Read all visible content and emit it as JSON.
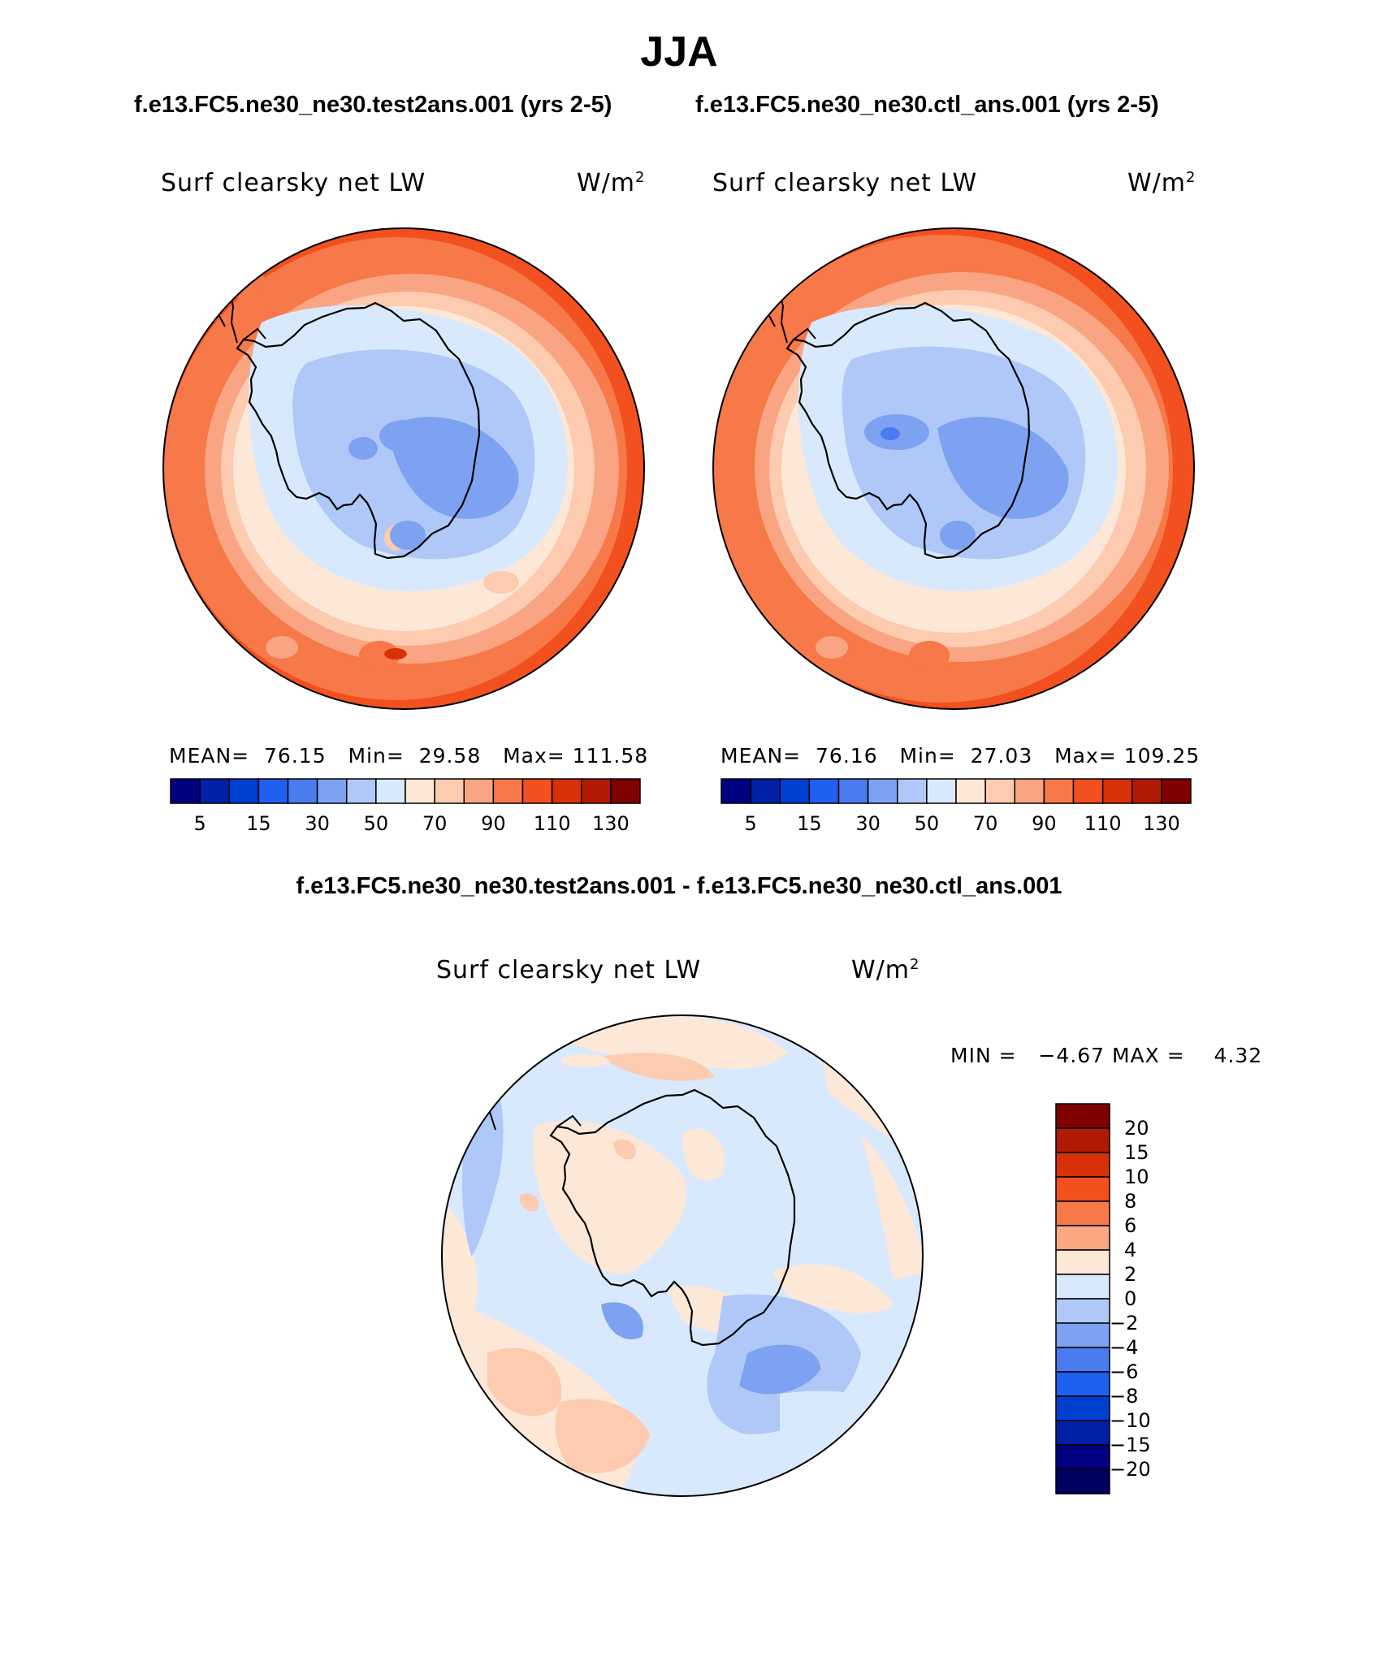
{
  "title": "JJA",
  "panels": [
    {
      "case_title": "f.e13.FC5.ne30_ne30.test2ans.001 (yrs 2-5)",
      "variable": "Surf clearsky net LW",
      "units": "W/m",
      "units_exp": "2",
      "mean_label": "MEAN=",
      "mean": "76.15",
      "min_label": "Min=",
      "min": "29.58",
      "max_label": "Max=",
      "max": "111.58"
    },
    {
      "case_title": "f.e13.FC5.ne30_ne30.ctl_ans.001 (yrs 2-5)",
      "variable": "Surf clearsky net LW",
      "units": "W/m",
      "units_exp": "2",
      "mean_label": "MEAN=",
      "mean": "76.16",
      "min_label": "Min=",
      "min": "27.03",
      "max_label": "Max=",
      "max": "109.25"
    }
  ],
  "colorbar": {
    "colors": [
      "#000080",
      "#0020a8",
      "#0040d0",
      "#2060f0",
      "#4a7cf0",
      "#7ea2f2",
      "#b0c8f8",
      "#d9e9fd",
      "#fde8d8",
      "#fccbb0",
      "#f9a482",
      "#f77848",
      "#f2501e",
      "#d83008",
      "#b01a04",
      "#800000"
    ],
    "tick_labels": [
      "5",
      "15",
      "30",
      "50",
      "70",
      "90",
      "110",
      "130"
    ]
  },
  "diff": {
    "title": "f.e13.FC5.ne30_ne30.test2ans.001 - f.e13.FC5.ne30_ne30.ctl_ans.001",
    "variable": "Surf clearsky net LW",
    "units": "W/m",
    "units_exp": "2",
    "min_label": "MIN =",
    "min": "−4.67",
    "max_label": "MAX =",
    "max": "4.32",
    "colorbar": {
      "colors_top_to_bottom": [
        "#800000",
        "#b01a04",
        "#d83008",
        "#f2501e",
        "#f77848",
        "#fba882",
        "#fde8d8",
        "#d9e9fd",
        "#b0c8f8",
        "#7ea2f2",
        "#4a7cf0",
        "#2060f0",
        "#0040d0",
        "#0020a8",
        "#000080",
        "#000060"
      ],
      "tick_labels_top_to_bottom": [
        "20",
        "15",
        "10",
        "8",
        "6",
        "4",
        "2",
        "0",
        "−2",
        "−4",
        "−6",
        "−8",
        "−10",
        "−15",
        "−20"
      ]
    }
  }
}
